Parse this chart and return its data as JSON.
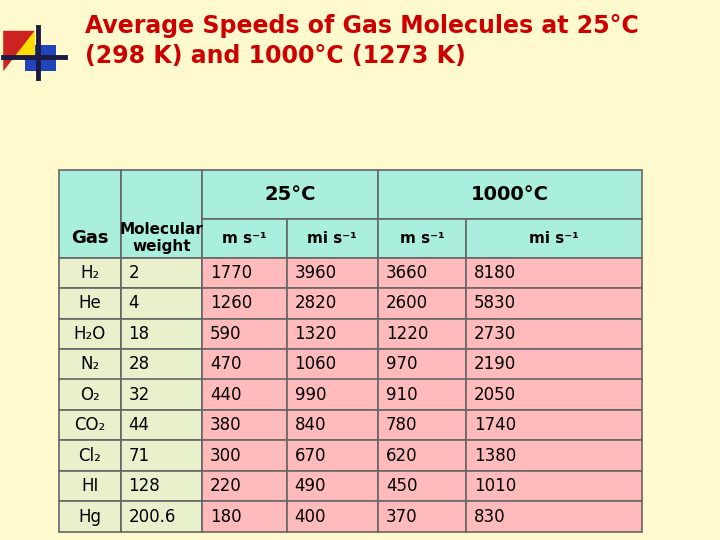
{
  "title_line1": "Average Speeds of Gas Molecules at 25°C",
  "title_line2": "(298 K) and 1000°C (1273 K)",
  "title_color": "#cc0000",
  "bg_color": "#fffacd",
  "header_bg": "#aaeedd",
  "data_bg": "#ffbbbb",
  "gas_col_bg": "#e8f0cc",
  "temp_headers": [
    "25°C",
    "1000°C"
  ],
  "unit_headers": [
    "m s⁻¹",
    "mi s⁻¹",
    "m s⁻¹",
    "mi s⁻¹"
  ],
  "gases": [
    "H₂",
    "He",
    "H₂O",
    "N₂",
    "O₂",
    "CO₂",
    "Cl₂",
    "HI",
    "Hg"
  ],
  "mol_weights": [
    "2",
    "4",
    "18",
    "28",
    "32",
    "44",
    "71",
    "128",
    "200.6"
  ],
  "ms_25": [
    "1770",
    "1260",
    "590",
    "470",
    "440",
    "380",
    "300",
    "220",
    "180"
  ],
  "mis_25": [
    "3960",
    "2820",
    "1320",
    "1060",
    "990",
    "840",
    "670",
    "490",
    "400"
  ],
  "ms_1000": [
    "3660",
    "2600",
    "1220",
    "970",
    "910",
    "780",
    "620",
    "450",
    "370"
  ],
  "mis_1000": [
    "8180",
    "5830",
    "2730",
    "2190",
    "2050",
    "1740",
    "1380",
    "1010",
    "830"
  ],
  "border_color": "#666666"
}
